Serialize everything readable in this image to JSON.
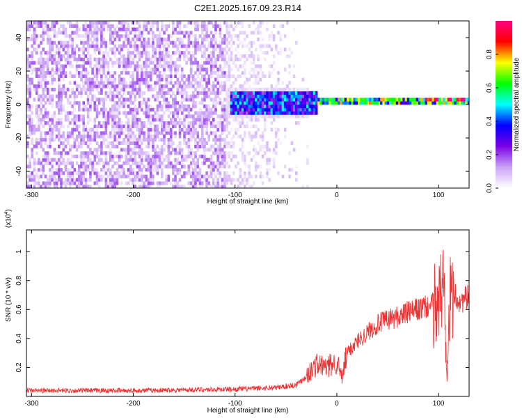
{
  "title": "C2E1.2025.167.09.23.R14",
  "chart_data": [
    {
      "type": "heatmap",
      "xlabel": "Height of straight line (km)",
      "ylabel": "Frequency (Hz)",
      "xlim": [
        -305,
        130
      ],
      "ylim": [
        -50,
        50
      ],
      "xticks": [
        -300,
        -200,
        -100,
        0,
        100
      ],
      "yticks": [
        -40,
        -20,
        0,
        20,
        40
      ],
      "grid": false,
      "colorbar": {
        "label": "Normalized spectral amplitude",
        "range": [
          0,
          1
        ],
        "ticks": [
          0.0,
          0.2,
          0.4,
          0.6,
          0.8
        ],
        "colors": [
          "#ffffff",
          "#c9a3f5",
          "#7a00e6",
          "#0000ff",
          "#00ffff",
          "#00ff00",
          "#ffff00",
          "#ff0000",
          "#ff0080"
        ]
      },
      "regions": [
        {
          "x_range": [
            -305,
            -110
          ],
          "freq_range": [
            -50,
            50
          ],
          "amplitude": 0.1
        },
        {
          "x_range": [
            -110,
            -30
          ],
          "freq_range": [
            -50,
            50
          ],
          "amplitude": 0.05
        },
        {
          "x_range": [
            -105,
            -20
          ],
          "freq_range": [
            -7,
            7
          ],
          "amplitude": 0.35
        },
        {
          "x_range": [
            -20,
            130
          ],
          "freq_range": [
            -1,
            3
          ],
          "amplitude": 0.55
        },
        {
          "x_range": [
            80,
            130
          ],
          "freq_range": [
            1,
            3
          ],
          "amplitude": 0.95
        }
      ]
    },
    {
      "type": "line",
      "xlabel": "Height of straight line (km)",
      "ylabel": "SNR (10 * v/v)",
      "y_multiplier": "(x10",
      "y_multiplier_exp": "4",
      "y_multiplier_close": ")",
      "xlim": [
        -305,
        130
      ],
      "ylim": [
        0,
        1.15
      ],
      "xticks": [
        -300,
        -200,
        -100,
        0,
        100
      ],
      "yticks": [
        0.2,
        0.4,
        0.6,
        0.8,
        1
      ],
      "grid": false,
      "series_color": "#ee3333",
      "x": [
        -305,
        -250,
        -200,
        -150,
        -100,
        -60,
        -40,
        -30,
        -20,
        -10,
        0,
        5,
        10,
        20,
        30,
        40,
        50,
        60,
        70,
        80,
        90,
        100,
        105,
        108,
        112,
        120,
        130
      ],
      "y": [
        0.04,
        0.04,
        0.04,
        0.045,
        0.05,
        0.06,
        0.08,
        0.14,
        0.22,
        0.2,
        0.24,
        0.12,
        0.3,
        0.38,
        0.44,
        0.5,
        0.53,
        0.55,
        0.58,
        0.6,
        0.62,
        0.65,
        0.8,
        0.2,
        0.72,
        0.66,
        0.68
      ]
    }
  ]
}
